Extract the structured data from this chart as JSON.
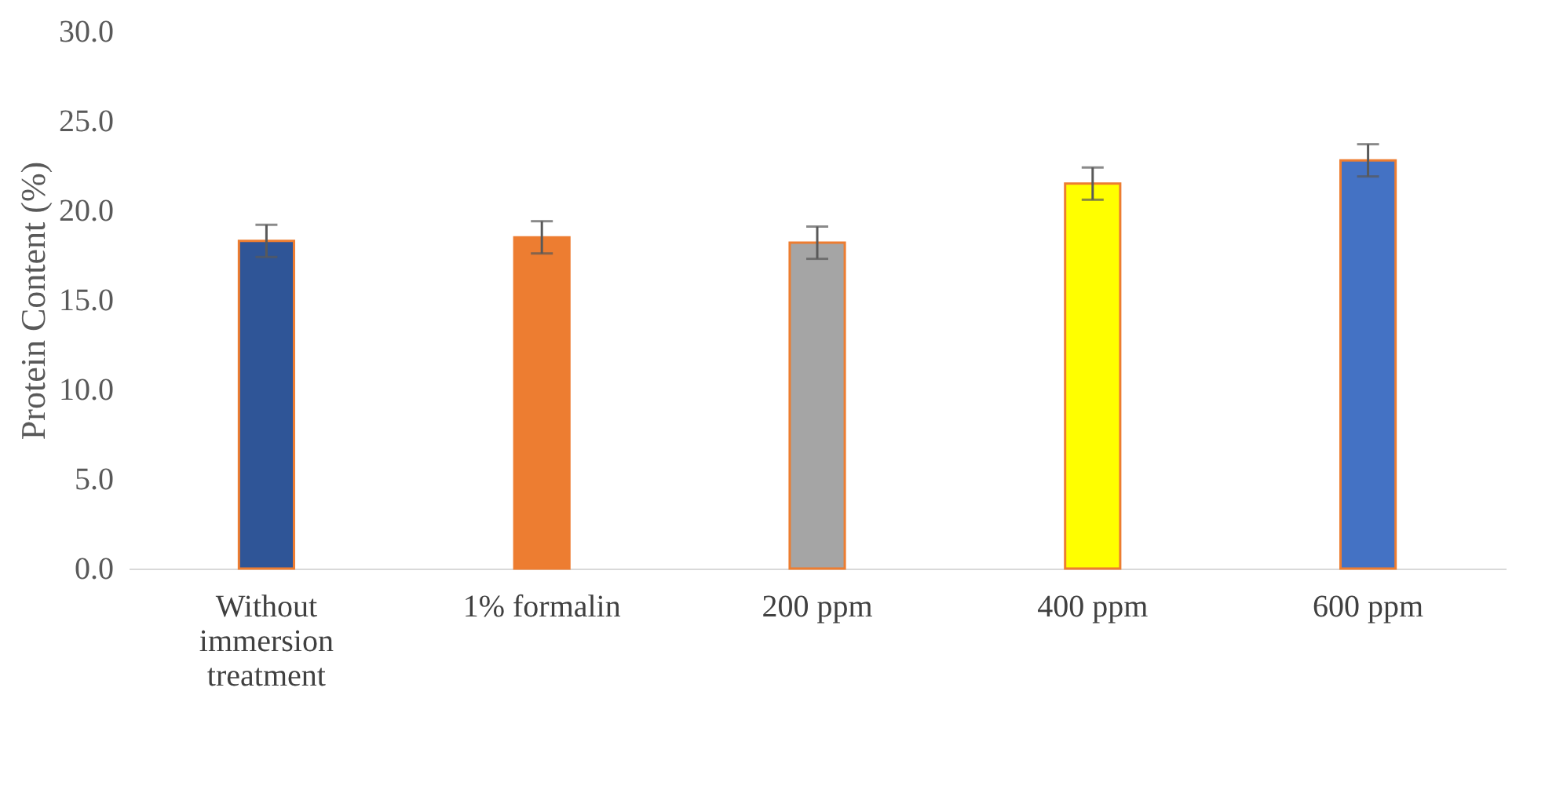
{
  "chart_data": {
    "type": "bar",
    "ylabel": "Protein Content (%)",
    "categories": [
      "Without immersion treatment",
      "1% formalin",
      "200 ppm",
      "400 ppm",
      "600 ppm"
    ],
    "values": [
      18.3,
      18.5,
      18.2,
      21.5,
      22.8
    ],
    "errors": [
      0.9,
      0.9,
      0.9,
      0.9,
      0.9
    ],
    "colors": [
      "#2f5597",
      "#ed7d31",
      "#a5a5a5",
      "#ffff00",
      "#4472c4"
    ],
    "ylim": [
      0,
      30
    ],
    "yticks": [
      {
        "value": 0,
        "label": "0.0"
      },
      {
        "value": 5,
        "label": "5.0"
      },
      {
        "value": 10,
        "label": "10.0"
      },
      {
        "value": 15,
        "label": "15.0"
      },
      {
        "value": 20,
        "label": "20.0"
      },
      {
        "value": 25,
        "label": "25.0"
      },
      {
        "value": 30,
        "label": "30.0"
      }
    ],
    "grid": false,
    "legend": false
  }
}
